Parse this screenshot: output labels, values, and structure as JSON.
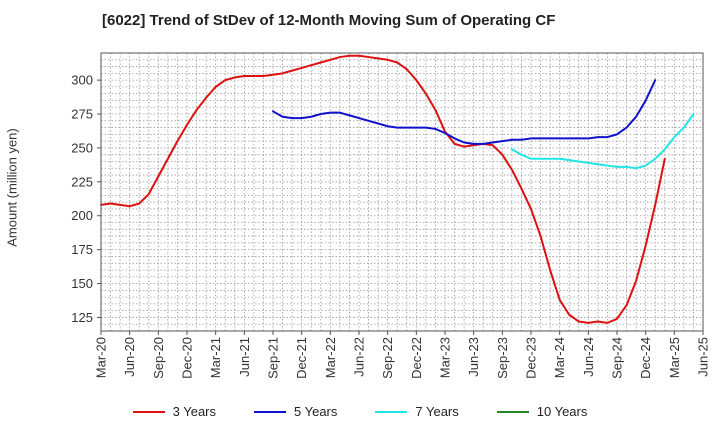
{
  "chart_data": {
    "type": "line",
    "title": "[6022]  Trend of StDev of 12-Month Moving Sum of Operating CF",
    "xlabel": "",
    "ylabel": "Amount (million yen)",
    "ylim": [
      115,
      320
    ],
    "yticks": [
      125,
      150,
      175,
      200,
      225,
      250,
      275,
      300
    ],
    "x_tick_labels": [
      "Mar-20",
      "Jun-20",
      "Sep-20",
      "Dec-20",
      "Mar-21",
      "Jun-21",
      "Sep-21",
      "Dec-21",
      "Mar-22",
      "Jun-22",
      "Sep-22",
      "Dec-22",
      "Mar-23",
      "Jun-23",
      "Sep-23",
      "Dec-23",
      "Mar-24",
      "Jun-24",
      "Sep-24",
      "Dec-24",
      "Mar-25",
      "Jun-25"
    ],
    "grid": true,
    "legend_position": "bottom",
    "series": [
      {
        "name": "3 Years",
        "color": "#dd1111",
        "start_index": 0,
        "values": [
          208,
          209,
          208,
          207,
          209,
          216,
          229,
          242,
          255,
          267,
          278,
          287,
          295,
          300,
          302,
          303,
          303,
          303,
          304,
          305,
          307,
          309,
          311,
          313,
          315,
          317,
          318,
          318,
          317,
          316,
          315,
          313,
          308,
          300,
          290,
          278,
          262,
          253,
          251,
          252,
          253,
          252,
          245,
          234,
          220,
          205,
          185,
          160,
          138,
          127,
          122,
          121,
          122,
          121,
          124,
          134,
          152,
          178,
          208,
          242
        ]
      },
      {
        "name": "5 Years",
        "color": "#1111cc",
        "start_index": 18,
        "values": [
          277,
          273,
          272,
          272,
          273,
          275,
          276,
          276,
          274,
          272,
          270,
          268,
          266,
          265,
          265,
          265,
          265,
          264,
          261,
          257,
          254,
          253,
          253,
          254,
          255,
          256,
          256,
          257,
          257,
          257,
          257,
          257,
          257,
          257,
          258,
          258,
          260,
          265,
          273,
          285,
          300
        ]
      },
      {
        "name": "7 Years",
        "color": "#22e5e5",
        "start_index": 43,
        "values": [
          249,
          245,
          242,
          242,
          242,
          242,
          241,
          240,
          239,
          238,
          237,
          236,
          236,
          235,
          237,
          242,
          249,
          258,
          265,
          275
        ]
      },
      {
        "name": "10 Years",
        "color": "#228822",
        "start_index": 0,
        "values": []
      }
    ]
  }
}
